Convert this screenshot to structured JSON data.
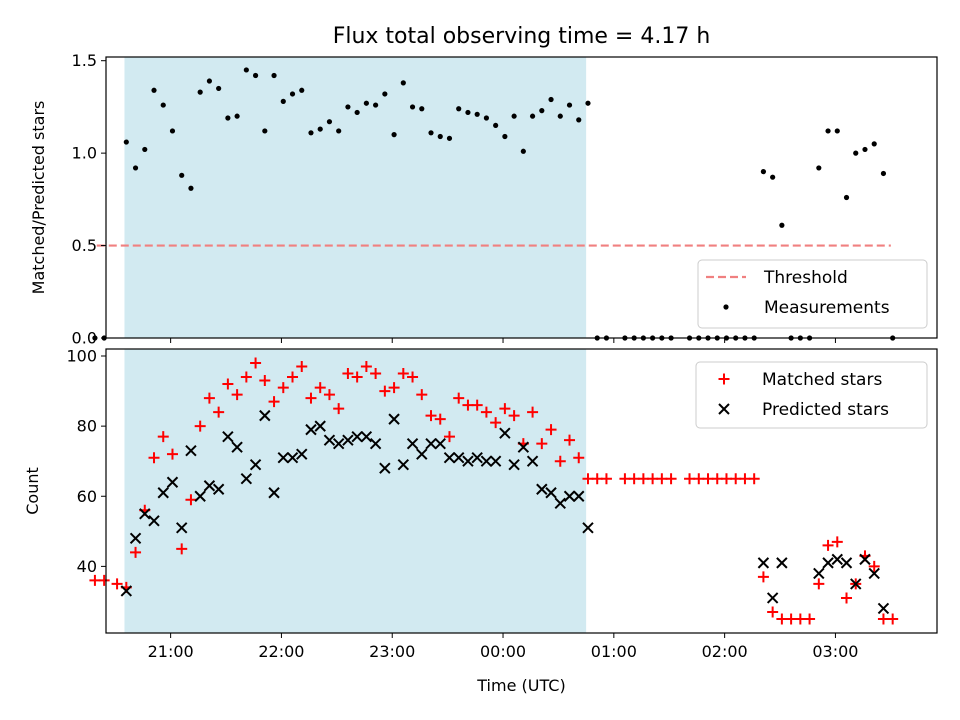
{
  "chart_data": [
    {
      "type": "scatter",
      "title": "Flux total observing time = 4.17 h",
      "ylabel": "Matched/Predicted stars",
      "xlabel": "",
      "xlim": [
        "20:25",
        "03:55"
      ],
      "ylim": [
        0,
        1.52
      ],
      "yticks": [
        {
          "v": 0.0,
          "label": "0.0"
        },
        {
          "v": 0.5,
          "label": "0.5"
        },
        {
          "v": 1.0,
          "label": "1.0"
        },
        {
          "v": 1.5,
          "label": "1.5"
        }
      ],
      "shaded_span": {
        "from": "20:35",
        "to": "00:45",
        "color": "#add8e6"
      },
      "threshold": {
        "name": "Threshold",
        "value": 0.5,
        "from": "20:20",
        "to": "03:30",
        "color": "#f08080"
      },
      "legend": {
        "position": "lower right",
        "entries": [
          "Threshold",
          "Measurements"
        ]
      },
      "series": [
        {
          "name": "Measurements",
          "marker": "dot",
          "color": "#000000",
          "points": [
            [
              "20:19",
              0
            ],
            [
              "20:24",
              0
            ],
            [
              "20:36",
              1.06
            ],
            [
              "20:41",
              0.92
            ],
            [
              "20:46",
              1.02
            ],
            [
              "20:51",
              1.34
            ],
            [
              "20:56",
              1.26
            ],
            [
              "21:01",
              1.12
            ],
            [
              "21:06",
              0.88
            ],
            [
              "21:11",
              0.81
            ],
            [
              "21:16",
              1.33
            ],
            [
              "21:21",
              1.39
            ],
            [
              "21:26",
              1.35
            ],
            [
              "21:31",
              1.19
            ],
            [
              "21:36",
              1.2
            ],
            [
              "21:41",
              1.45
            ],
            [
              "21:46",
              1.42
            ],
            [
              "21:51",
              1.12
            ],
            [
              "21:56",
              1.42
            ],
            [
              "22:01",
              1.28
            ],
            [
              "22:06",
              1.32
            ],
            [
              "22:11",
              1.34
            ],
            [
              "22:16",
              1.11
            ],
            [
              "22:21",
              1.13
            ],
            [
              "22:26",
              1.17
            ],
            [
              "22:31",
              1.12
            ],
            [
              "22:36",
              1.25
            ],
            [
              "22:41",
              1.22
            ],
            [
              "22:46",
              1.27
            ],
            [
              "22:51",
              1.26
            ],
            [
              "22:56",
              1.32
            ],
            [
              "23:01",
              1.1
            ],
            [
              "23:06",
              1.38
            ],
            [
              "23:11",
              1.25
            ],
            [
              "23:16",
              1.24
            ],
            [
              "23:21",
              1.11
            ],
            [
              "23:26",
              1.09
            ],
            [
              "23:31",
              1.08
            ],
            [
              "23:36",
              1.24
            ],
            [
              "23:41",
              1.22
            ],
            [
              "23:46",
              1.21
            ],
            [
              "23:51",
              1.19
            ],
            [
              "23:56",
              1.15
            ],
            [
              "00:01",
              1.09
            ],
            [
              "00:06",
              1.2
            ],
            [
              "00:11",
              1.01
            ],
            [
              "00:16",
              1.2
            ],
            [
              "00:21",
              1.23
            ],
            [
              "00:26",
              1.29
            ],
            [
              "00:31",
              1.2
            ],
            [
              "00:36",
              1.26
            ],
            [
              "00:41",
              1.18
            ],
            [
              "00:46",
              1.27
            ],
            [
              "00:51",
              0
            ],
            [
              "00:56",
              0
            ],
            [
              "01:06",
              0
            ],
            [
              "01:11",
              0
            ],
            [
              "01:16",
              0
            ],
            [
              "01:21",
              0
            ],
            [
              "01:26",
              0
            ],
            [
              "01:31",
              0
            ],
            [
              "01:41",
              0
            ],
            [
              "01:46",
              0
            ],
            [
              "01:51",
              0
            ],
            [
              "01:56",
              0
            ],
            [
              "02:01",
              0
            ],
            [
              "02:06",
              0
            ],
            [
              "02:11",
              0
            ],
            [
              "02:16",
              0
            ],
            [
              "02:21",
              0.9
            ],
            [
              "02:26",
              0.87
            ],
            [
              "02:31",
              0.61
            ],
            [
              "02:36",
              0
            ],
            [
              "02:41",
              0
            ],
            [
              "02:46",
              0
            ],
            [
              "02:51",
              0.92
            ],
            [
              "02:56",
              1.12
            ],
            [
              "03:01",
              1.12
            ],
            [
              "03:06",
              0.76
            ],
            [
              "03:11",
              1.0
            ],
            [
              "03:16",
              1.02
            ],
            [
              "03:21",
              1.05
            ],
            [
              "03:26",
              0.89
            ],
            [
              "03:31",
              0
            ]
          ]
        }
      ]
    },
    {
      "type": "scatter",
      "title": "",
      "xlabel": "Time (UTC)",
      "ylabel": "Count",
      "xlim": [
        "20:25",
        "03:55"
      ],
      "ylim": [
        21,
        102
      ],
      "xticks": [
        {
          "v": "21:00",
          "label": "21:00"
        },
        {
          "v": "22:00",
          "label": "22:00"
        },
        {
          "v": "23:00",
          "label": "23:00"
        },
        {
          "v": "00:00",
          "label": "00:00"
        },
        {
          "v": "01:00",
          "label": "01:00"
        },
        {
          "v": "02:00",
          "label": "02:00"
        },
        {
          "v": "03:00",
          "label": "03:00"
        }
      ],
      "yticks": [
        {
          "v": 40,
          "label": "40"
        },
        {
          "v": 60,
          "label": "60"
        },
        {
          "v": 80,
          "label": "80"
        },
        {
          "v": 100,
          "label": "100"
        }
      ],
      "shaded_span": {
        "from": "20:35",
        "to": "00:45",
        "color": "#add8e6"
      },
      "legend": {
        "position": "upper right",
        "entries": [
          "Matched stars",
          "Predicted stars"
        ]
      },
      "series": [
        {
          "name": "Matched stars",
          "marker": "plus",
          "color": "#ff0000",
          "points": [
            [
              "20:19",
              36
            ],
            [
              "20:24",
              36
            ],
            [
              "20:31",
              35
            ],
            [
              "20:36",
              34
            ],
            [
              "20:41",
              44
            ],
            [
              "20:46",
              56
            ],
            [
              "20:51",
              71
            ],
            [
              "20:56",
              77
            ],
            [
              "21:01",
              72
            ],
            [
              "21:06",
              45
            ],
            [
              "21:11",
              59
            ],
            [
              "21:16",
              80
            ],
            [
              "21:21",
              88
            ],
            [
              "21:26",
              84
            ],
            [
              "21:31",
              92
            ],
            [
              "21:36",
              89
            ],
            [
              "21:41",
              94
            ],
            [
              "21:46",
              98
            ],
            [
              "21:51",
              93
            ],
            [
              "21:56",
              87
            ],
            [
              "22:01",
              91
            ],
            [
              "22:06",
              94
            ],
            [
              "22:11",
              97
            ],
            [
              "22:16",
              88
            ],
            [
              "22:21",
              91
            ],
            [
              "22:26",
              89
            ],
            [
              "22:31",
              85
            ],
            [
              "22:36",
              95
            ],
            [
              "22:41",
              94
            ],
            [
              "22:46",
              97
            ],
            [
              "22:51",
              95
            ],
            [
              "22:56",
              90
            ],
            [
              "23:01",
              91
            ],
            [
              "23:06",
              95
            ],
            [
              "23:11",
              94
            ],
            [
              "23:16",
              89
            ],
            [
              "23:21",
              83
            ],
            [
              "23:26",
              82
            ],
            [
              "23:31",
              77
            ],
            [
              "23:36",
              88
            ],
            [
              "23:41",
              86
            ],
            [
              "23:46",
              86
            ],
            [
              "23:51",
              84
            ],
            [
              "23:56",
              81
            ],
            [
              "00:01",
              85
            ],
            [
              "00:06",
              83
            ],
            [
              "00:11",
              75
            ],
            [
              "00:16",
              84
            ],
            [
              "00:21",
              75
            ],
            [
              "00:26",
              79
            ],
            [
              "00:31",
              70
            ],
            [
              "00:36",
              76
            ],
            [
              "00:41",
              71
            ],
            [
              "00:46",
              65
            ],
            [
              "00:51",
              65
            ],
            [
              "00:56",
              65
            ],
            [
              "01:06",
              65
            ],
            [
              "01:11",
              65
            ],
            [
              "01:16",
              65
            ],
            [
              "01:21",
              65
            ],
            [
              "01:26",
              65
            ],
            [
              "01:31",
              65
            ],
            [
              "01:41",
              65
            ],
            [
              "01:46",
              65
            ],
            [
              "01:51",
              65
            ],
            [
              "01:56",
              65
            ],
            [
              "02:01",
              65
            ],
            [
              "02:06",
              65
            ],
            [
              "02:11",
              65
            ],
            [
              "02:16",
              65
            ],
            [
              "02:21",
              37
            ],
            [
              "02:26",
              27
            ],
            [
              "02:31",
              25
            ],
            [
              "02:36",
              25
            ],
            [
              "02:41",
              25
            ],
            [
              "02:46",
              25
            ],
            [
              "02:51",
              35
            ],
            [
              "02:56",
              46
            ],
            [
              "03:01",
              47
            ],
            [
              "03:06",
              31
            ],
            [
              "03:11",
              35
            ],
            [
              "03:16",
              43
            ],
            [
              "03:21",
              40
            ],
            [
              "03:26",
              25
            ],
            [
              "03:31",
              25
            ]
          ]
        },
        {
          "name": "Predicted stars",
          "marker": "x",
          "color": "#000000",
          "points": [
            [
              "20:36",
              33
            ],
            [
              "20:41",
              48
            ],
            [
              "20:46",
              55
            ],
            [
              "20:51",
              53
            ],
            [
              "20:56",
              61
            ],
            [
              "21:01",
              64
            ],
            [
              "21:06",
              51
            ],
            [
              "21:11",
              73
            ],
            [
              "21:16",
              60
            ],
            [
              "21:21",
              63
            ],
            [
              "21:26",
              62
            ],
            [
              "21:31",
              77
            ],
            [
              "21:36",
              74
            ],
            [
              "21:41",
              65
            ],
            [
              "21:46",
              69
            ],
            [
              "21:51",
              83
            ],
            [
              "21:56",
              61
            ],
            [
              "22:01",
              71
            ],
            [
              "22:06",
              71
            ],
            [
              "22:11",
              72
            ],
            [
              "22:16",
              79
            ],
            [
              "22:21",
              80
            ],
            [
              "22:26",
              76
            ],
            [
              "22:31",
              75
            ],
            [
              "22:36",
              76
            ],
            [
              "22:41",
              77
            ],
            [
              "22:46",
              77
            ],
            [
              "22:51",
              75
            ],
            [
              "22:56",
              68
            ],
            [
              "23:01",
              82
            ],
            [
              "23:06",
              69
            ],
            [
              "23:11",
              75
            ],
            [
              "23:16",
              72
            ],
            [
              "23:21",
              75
            ],
            [
              "23:26",
              75
            ],
            [
              "23:31",
              71
            ],
            [
              "23:36",
              71
            ],
            [
              "23:41",
              70
            ],
            [
              "23:46",
              71
            ],
            [
              "23:51",
              70
            ],
            [
              "23:56",
              70
            ],
            [
              "00:01",
              78
            ],
            [
              "00:06",
              69
            ],
            [
              "00:11",
              74
            ],
            [
              "00:16",
              70
            ],
            [
              "00:21",
              62
            ],
            [
              "00:26",
              61
            ],
            [
              "00:31",
              58
            ],
            [
              "00:36",
              60
            ],
            [
              "00:41",
              60
            ],
            [
              "00:46",
              51
            ],
            [
              "02:21",
              41
            ],
            [
              "02:26",
              31
            ],
            [
              "02:31",
              41
            ],
            [
              "02:51",
              38
            ],
            [
              "02:56",
              41
            ],
            [
              "03:01",
              42
            ],
            [
              "03:06",
              41
            ],
            [
              "03:11",
              35
            ],
            [
              "03:16",
              42
            ],
            [
              "03:21",
              38
            ],
            [
              "03:26",
              28
            ]
          ]
        }
      ]
    }
  ]
}
